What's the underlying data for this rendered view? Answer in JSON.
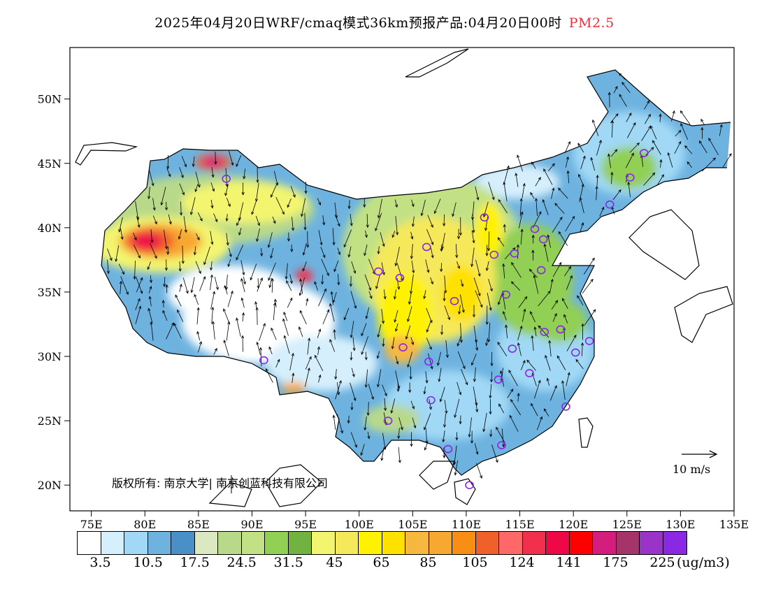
{
  "title": {
    "main": "2025年04月20日WRF/cmaq模式36km预报产品:04月20日00时",
    "product": "PM2.5"
  },
  "axes": {
    "lat_labels": [
      "50N",
      "45N",
      "40N",
      "35N",
      "30N",
      "25N",
      "20N"
    ],
    "lat_values": [
      50,
      45,
      40,
      35,
      30,
      25,
      20
    ],
    "lon_labels": [
      "75E",
      "80E",
      "85E",
      "90E",
      "95E",
      "100E",
      "105E",
      "110E",
      "115E",
      "120E",
      "125E",
      "130E",
      "135E"
    ],
    "lon_values": [
      75,
      80,
      85,
      90,
      95,
      100,
      105,
      110,
      115,
      120,
      125,
      130,
      135
    ],
    "lon_range": [
      73,
      135
    ],
    "lat_range": [
      18,
      54
    ]
  },
  "copyright": "版权所有: 南京大学| 南京创蓝科技有限公司",
  "wind_legend": "10 m/s",
  "colorbar": {
    "colors": [
      "#ffffff",
      "#d6effc",
      "#a0d8f5",
      "#6eb3e0",
      "#4a90c8",
      "#dce9c0",
      "#b8d98a",
      "#c2e184",
      "#92cf55",
      "#72b240",
      "#f3f56e",
      "#f5e85a",
      "#fff200",
      "#ffe100",
      "#f7b840",
      "#f7a830",
      "#f98e14",
      "#f0602a",
      "#ff6868",
      "#f3304c",
      "#ef0846",
      "#ff0000",
      "#d41e7e",
      "#a4346a",
      "#9a34c8",
      "#8a28e6"
    ],
    "labels": [
      "3.5",
      "10.5",
      "17.5",
      "24.5",
      "31.5",
      "45",
      "65",
      "85",
      "105",
      "124",
      "141",
      "175",
      "225"
    ],
    "unit": "(ug/m3)"
  },
  "cities": [
    {
      "lon": 87.6,
      "lat": 43.8
    },
    {
      "lon": 91.1,
      "lat": 29.7
    },
    {
      "lon": 101.8,
      "lat": 36.6
    },
    {
      "lon": 103.8,
      "lat": 36.1
    },
    {
      "lon": 106.3,
      "lat": 38.5
    },
    {
      "lon": 111.7,
      "lat": 40.8
    },
    {
      "lon": 112.6,
      "lat": 37.9
    },
    {
      "lon": 114.5,
      "lat": 38.0
    },
    {
      "lon": 116.4,
      "lat": 39.9
    },
    {
      "lon": 117.2,
      "lat": 39.1
    },
    {
      "lon": 117.0,
      "lat": 36.7
    },
    {
      "lon": 113.7,
      "lat": 34.8
    },
    {
      "lon": 108.9,
      "lat": 34.3
    },
    {
      "lon": 104.1,
      "lat": 30.7
    },
    {
      "lon": 106.5,
      "lat": 29.6
    },
    {
      "lon": 114.3,
      "lat": 30.6
    },
    {
      "lon": 117.3,
      "lat": 31.9
    },
    {
      "lon": 118.8,
      "lat": 32.1
    },
    {
      "lon": 121.5,
      "lat": 31.2
    },
    {
      "lon": 120.2,
      "lat": 30.3
    },
    {
      "lon": 115.9,
      "lat": 28.7
    },
    {
      "lon": 113.0,
      "lat": 28.2
    },
    {
      "lon": 106.7,
      "lat": 26.6
    },
    {
      "lon": 102.7,
      "lat": 25.0
    },
    {
      "lon": 119.3,
      "lat": 26.1
    },
    {
      "lon": 113.3,
      "lat": 23.1
    },
    {
      "lon": 108.3,
      "lat": 22.8
    },
    {
      "lon": 110.3,
      "lat": 20.0
    },
    {
      "lon": 123.4,
      "lat": 41.8
    },
    {
      "lon": 125.3,
      "lat": 43.9
    },
    {
      "lon": 126.6,
      "lat": 45.8
    }
  ]
}
